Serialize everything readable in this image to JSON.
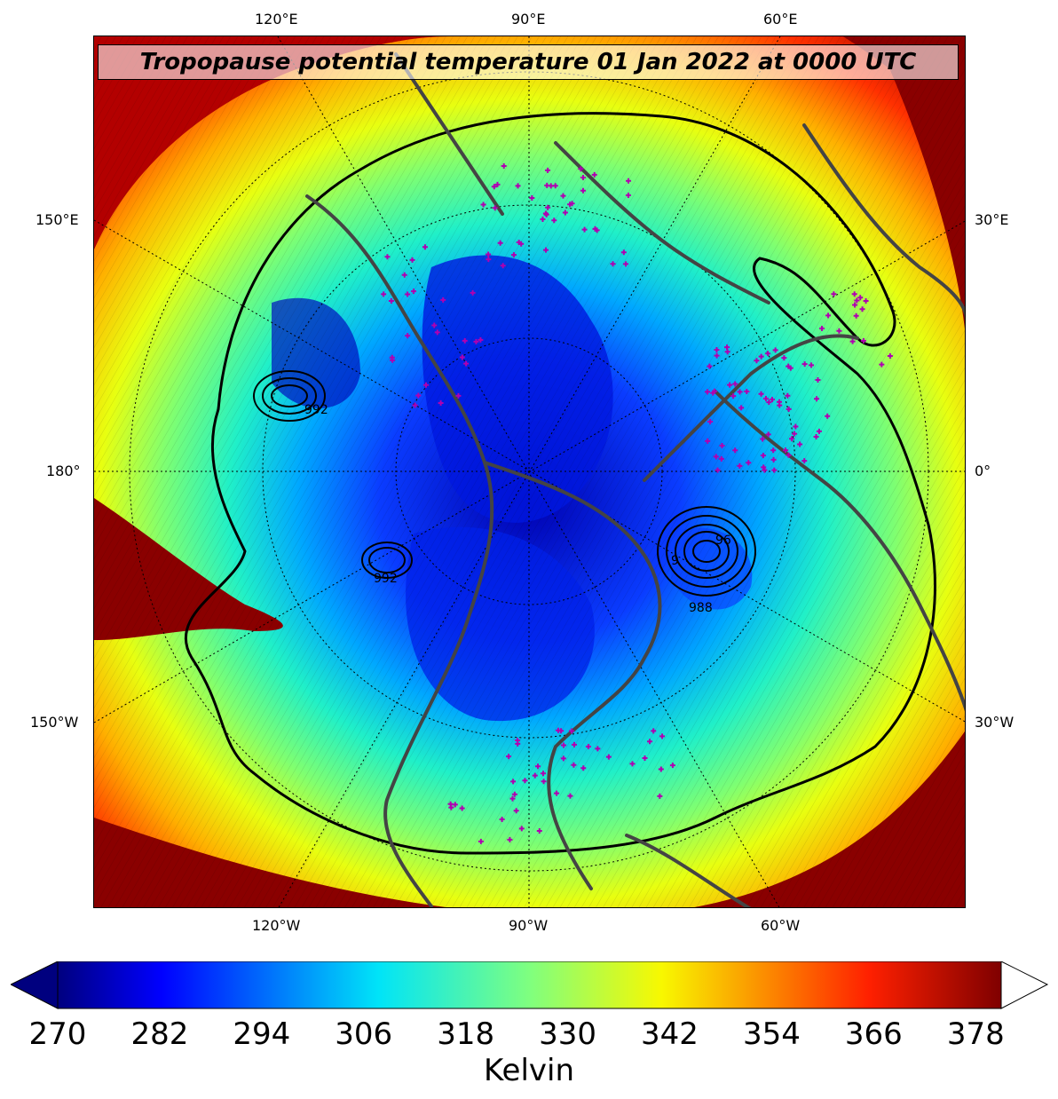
{
  "title": "Tropopause potential temperature 01 Jan 2022 at 0000 UTC",
  "top_labels": [
    "120°E",
    "90°E",
    "60°E"
  ],
  "bottom_labels": [
    "120°W",
    "90°W",
    "60°W"
  ],
  "left_labels": [
    "150°E",
    "180°",
    "150°W"
  ],
  "right_labels": [
    "30°E",
    "0°",
    "30°W"
  ],
  "contour_labels": [
    "992",
    "992",
    "96",
    "988",
    "9"
  ],
  "colorbar": {
    "ticks": [
      "270",
      "282",
      "294",
      "306",
      "318",
      "330",
      "342",
      "354",
      "366",
      "378"
    ],
    "label": "Kelvin",
    "range": [
      270,
      381
    ],
    "extend": "both",
    "colormap": "jet"
  },
  "colors": {
    "cold": "#00007f",
    "mid": "#7fff7f",
    "warm": "#7f0000",
    "station_marker": "#b000b0",
    "coastline": "#444444"
  }
}
